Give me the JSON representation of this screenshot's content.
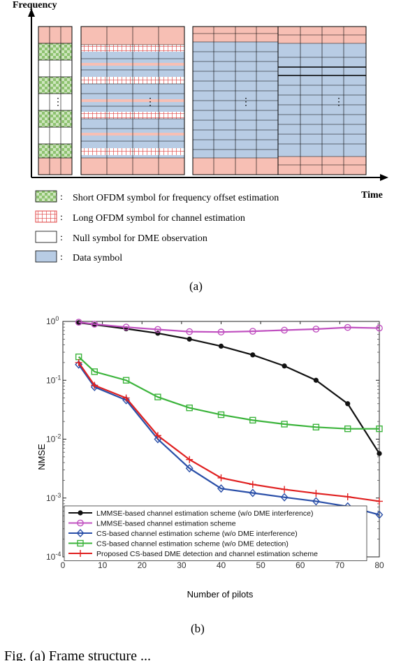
{
  "panel_a": {
    "axis_frequency": "Frequency",
    "axis_time": "Time",
    "ellipsis": "⋮",
    "legend": [
      {
        "key": "short",
        "text": "Short OFDM symbol for frequency offset estimation",
        "colon": ":"
      },
      {
        "key": "long",
        "text": "Long OFDM symbol for channel estimation",
        "colon": ":"
      },
      {
        "key": "null",
        "text": "Null symbol for DME observation",
        "colon": ":"
      },
      {
        "key": "data",
        "text": "Data symbol",
        "colon": ":"
      }
    ],
    "colors": {
      "pink": "#f7bfb4",
      "green": "#8dc26f",
      "red_grid": "#e04040",
      "blue": "#b8cce4",
      "line": "#000000"
    },
    "caption": "(a)"
  },
  "panel_b": {
    "caption": "(b)",
    "bottom_text": "Fig. (a) Frame structure ... "
  },
  "chart_data": {
    "type": "line",
    "xlabel": "Number of pilots",
    "ylabel": "NMSE",
    "xlim": [
      0,
      80
    ],
    "ylim_log10": [
      -4,
      0
    ],
    "y_scale": "log",
    "x_ticks": [
      "0",
      "10",
      "20",
      "30",
      "40",
      "50",
      "60",
      "70",
      "80"
    ],
    "y_ticks": [
      {
        "base": "10",
        "exp": "0"
      },
      {
        "base": "10",
        "exp": "-1"
      },
      {
        "base": "10",
        "exp": "-2"
      },
      {
        "base": "10",
        "exp": "-3"
      },
      {
        "base": "10",
        "exp": "-4"
      }
    ],
    "legend_position": "bottom-left",
    "grid": false,
    "x": [
      4,
      8,
      16,
      24,
      32,
      40,
      48,
      56,
      64,
      72,
      80
    ],
    "series": [
      {
        "name": "LMMSE-based channel estimation scheme (w/o DME interference)",
        "color": "#111111",
        "marker": "dot",
        "values": [
          0.95,
          0.88,
          0.75,
          0.63,
          0.5,
          0.38,
          0.27,
          0.175,
          0.1,
          0.04,
          0.0057
        ]
      },
      {
        "name": "LMMSE-based channel estimation scheme",
        "color": "#c050c0",
        "marker": "circle",
        "values": [
          0.97,
          0.9,
          0.8,
          0.73,
          0.67,
          0.66,
          0.68,
          0.71,
          0.74,
          0.79,
          0.77
        ]
      },
      {
        "name": "CS-based channel estimation scheme (w/o DME interference)",
        "color": "#2a4fa8",
        "marker": "diamond",
        "values": [
          0.185,
          0.077,
          0.046,
          0.01,
          0.0032,
          0.00145,
          0.00122,
          0.00103,
          0.00088,
          0.00072,
          0.00052
        ]
      },
      {
        "name": "CS-based channel estimation scheme (w/o DME detection)",
        "color": "#3cb43c",
        "marker": "square",
        "values": [
          0.25,
          0.14,
          0.1,
          0.052,
          0.034,
          0.026,
          0.021,
          0.018,
          0.016,
          0.015,
          0.015
        ]
      },
      {
        "name": "Proposed CS-based DME detection and channel estimation scheme",
        "color": "#e02020",
        "marker": "plus",
        "values": [
          0.2,
          0.082,
          0.05,
          0.0115,
          0.0045,
          0.0022,
          0.0017,
          0.0014,
          0.0012,
          0.00105,
          0.00088
        ]
      }
    ]
  }
}
